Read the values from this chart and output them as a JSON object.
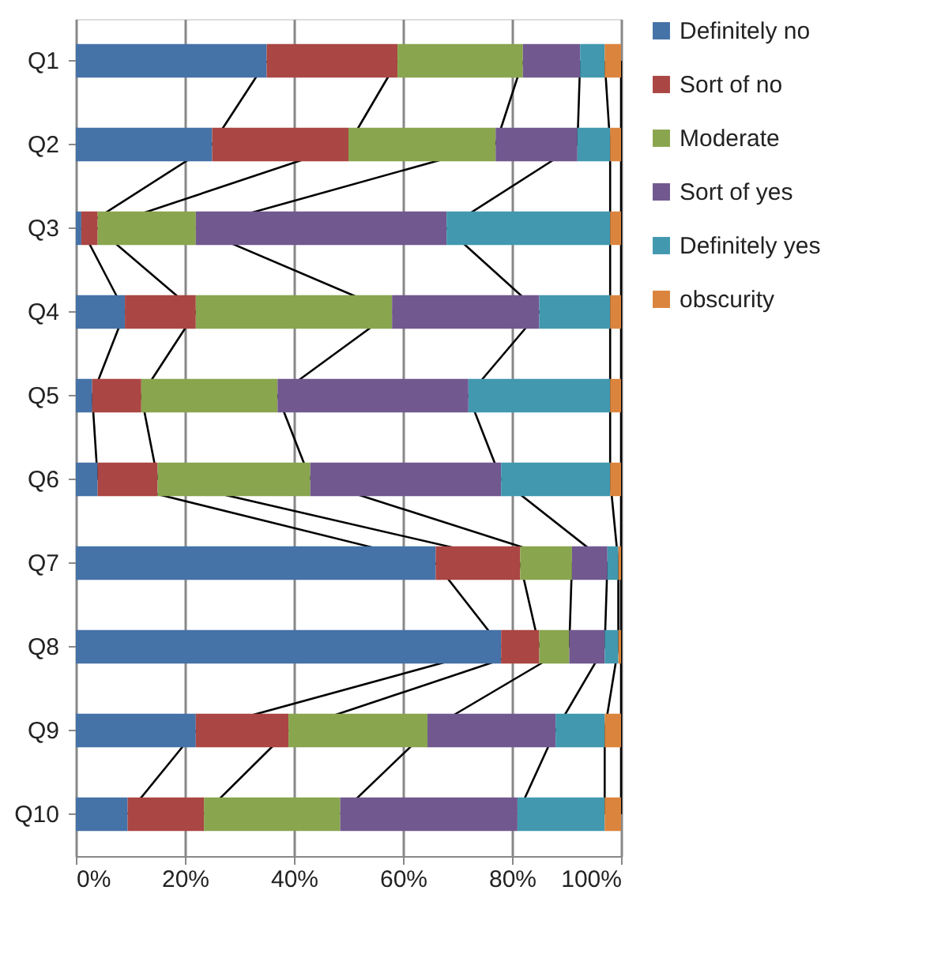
{
  "chart_data": {
    "type": "bar",
    "orientation": "horizontal",
    "stacked": true,
    "categories": [
      "Q1",
      "Q2",
      "Q3",
      "Q4",
      "Q5",
      "Q6",
      "Q7",
      "Q8",
      "Q9",
      "Q10"
    ],
    "series": [
      {
        "name": "Definitely no",
        "color": "#4572a7",
        "values": [
          35,
          25,
          1,
          9,
          3,
          4,
          66,
          78,
          22,
          9.5
        ]
      },
      {
        "name": "Sort of no",
        "color": "#aa4643",
        "values": [
          24,
          25,
          3,
          13,
          9,
          11,
          15.5,
          7,
          17,
          14
        ]
      },
      {
        "name": "Moderate",
        "color": "#89a54e",
        "values": [
          23,
          27,
          18,
          36,
          25,
          28,
          9.5,
          5.5,
          25.5,
          25
        ]
      },
      {
        "name": "Sort of yes",
        "color": "#71588f",
        "values": [
          10.5,
          15,
          46,
          27,
          35,
          35,
          6.5,
          6.5,
          23.5,
          32.5
        ]
      },
      {
        "name": "Definitely yes",
        "color": "#4198af",
        "values": [
          4.5,
          6,
          30,
          13,
          26,
          20,
          2,
          2.5,
          9,
          16
        ]
      },
      {
        "name": "obscurity",
        "color": "#db843d",
        "values": [
          3,
          2,
          2,
          2,
          2,
          2,
          0.5,
          0.5,
          3,
          3
        ]
      }
    ],
    "xlim": [
      0,
      100
    ],
    "xticks": [
      {
        "value": 0,
        "label": "0%"
      },
      {
        "value": 20,
        "label": "20%"
      },
      {
        "value": 40,
        "label": "40%"
      },
      {
        "value": 60,
        "label": "60%"
      },
      {
        "value": 80,
        "label": "80%"
      },
      {
        "value": 100,
        "label": "100%"
      }
    ],
    "grid": "x",
    "legend": "right"
  }
}
